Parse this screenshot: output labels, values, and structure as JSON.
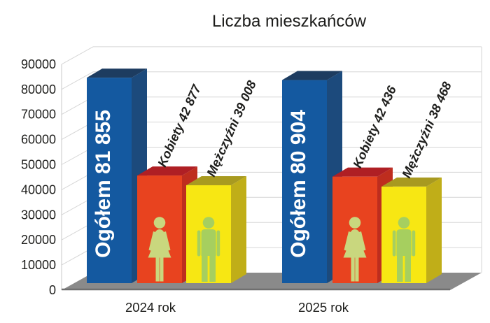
{
  "title": "Liczba mieszkańców",
  "colors": {
    "text": "#1d1d1b",
    "wall": "#ffffff",
    "grid": "#d6d6d6",
    "axis": "#c9c9c9",
    "floor": "#8a8a8a",
    "floor_edge": "#6f6f6f",
    "total_label": "#ffffff"
  },
  "chart_data": {
    "type": "bar",
    "style": "3d-column",
    "title": "Liczba mieszkańców",
    "categories": [
      "2024 rok",
      "2025 rok"
    ],
    "series": [
      {
        "name": "Ogółem",
        "values": [
          81855,
          80904
        ],
        "bar_labels": [
          "Ogółem 81 855",
          "Ogółem 80 904"
        ],
        "colors": {
          "front": "#1459A0",
          "top": "#1D3C60",
          "side": "#1C4A7C"
        }
      },
      {
        "name": "Kobiety",
        "values": [
          42877,
          42436
        ],
        "bar_labels": [
          "Kobiety 42 877",
          "Kobiety 42 436"
        ],
        "colors": {
          "front": "#E8431F",
          "top": "#AF1F24",
          "side": "#BE2D1E"
        },
        "icon": "woman",
        "icon_color": "#C9D77E"
      },
      {
        "name": "Mężczyźni",
        "values": [
          39008,
          38468
        ],
        "bar_labels": [
          "Mężczyźni 39 008",
          "Mężczyźni 38 468"
        ],
        "colors": {
          "front": "#F7E713",
          "top": "#A89A20",
          "side": "#C0AE18"
        },
        "icon": "man",
        "icon_color": "#A6CF5F"
      }
    ],
    "ylim": [
      0,
      90000
    ],
    "ytick_step": 10000,
    "yticks": [
      0,
      10000,
      20000,
      30000,
      40000,
      50000,
      60000,
      70000,
      80000,
      90000
    ],
    "grid": true,
    "legend": "none",
    "background": "#ffffff"
  }
}
